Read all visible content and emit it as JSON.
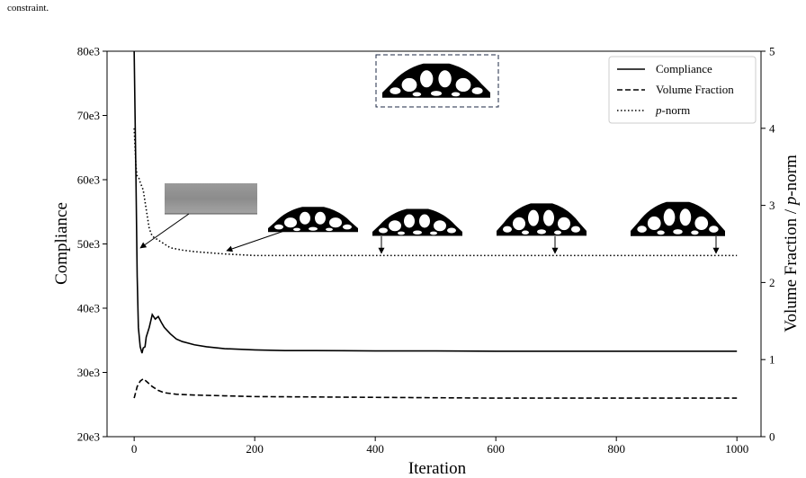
{
  "caption": "constraint.",
  "chart_data": {
    "type": "line",
    "title": "",
    "xlabel": "Iteration",
    "ylabel": "Compliance",
    "y2label": "Volume Fraction / p-norm",
    "y2label_parts": [
      "Volume Fraction / ",
      "p",
      "-norm"
    ],
    "xlim": [
      -45,
      1040
    ],
    "ylim": [
      20000,
      80000
    ],
    "y2lim": [
      0,
      5
    ],
    "xticks": [
      0,
      200,
      400,
      600,
      800,
      1000
    ],
    "yticks": [
      20000,
      30000,
      40000,
      50000,
      60000,
      70000,
      80000
    ],
    "ytick_labels": [
      "20e3",
      "30e3",
      "40e3",
      "50e3",
      "60e3",
      "70e3",
      "80e3"
    ],
    "y2ticks": [
      0,
      1,
      2,
      3,
      4,
      5
    ],
    "legend_position": "top-right",
    "grid": false,
    "series": [
      {
        "name": "Compliance",
        "axis": "left",
        "style": "solid",
        "x": [
          0,
          3,
          5,
          7,
          10,
          13,
          15,
          18,
          20,
          25,
          30,
          35,
          40,
          45,
          50,
          60,
          70,
          80,
          100,
          120,
          150,
          200,
          250,
          300,
          400,
          500,
          600,
          800,
          1000
        ],
        "y": [
          80000,
          60000,
          45000,
          37000,
          34000,
          33000,
          33800,
          34000,
          35500,
          37000,
          39000,
          38300,
          38700,
          37800,
          37000,
          36000,
          35200,
          34800,
          34300,
          34000,
          33700,
          33500,
          33400,
          33400,
          33350,
          33350,
          33300,
          33300,
          33300
        ]
      },
      {
        "name": "Volume Fraction",
        "axis": "right",
        "style": "dashed",
        "x": [
          0,
          5,
          10,
          15,
          20,
          30,
          40,
          50,
          70,
          100,
          150,
          200,
          300,
          400,
          600,
          800,
          1000
        ],
        "y": [
          0.5,
          0.65,
          0.72,
          0.75,
          0.72,
          0.65,
          0.6,
          0.57,
          0.55,
          0.54,
          0.53,
          0.52,
          0.515,
          0.51,
          0.5,
          0.5,
          0.5
        ]
      },
      {
        "name": "p-norm",
        "name_parts": [
          "p",
          "-norm"
        ],
        "axis": "right",
        "style": "dotted",
        "x": [
          0,
          3,
          5,
          8,
          10,
          15,
          20,
          25,
          30,
          40,
          50,
          60,
          80,
          100,
          150,
          200,
          300,
          400,
          600,
          800,
          1000
        ],
        "y": [
          4.0,
          3.5,
          3.38,
          3.35,
          3.3,
          3.2,
          2.95,
          2.7,
          2.6,
          2.55,
          2.5,
          2.45,
          2.42,
          2.4,
          2.37,
          2.35,
          2.35,
          2.35,
          2.35,
          2.35,
          2.35
        ]
      }
    ]
  },
  "inset_images": [
    {
      "name": "inset-initial-gray",
      "style": "gray",
      "arrow_to": [
        8,
        49000
      ]
    },
    {
      "name": "inset-early-design",
      "style": "arch",
      "arrow_to": [
        150,
        50000
      ]
    },
    {
      "name": "inset-design-400",
      "style": "arch",
      "arrow_to": [
        410,
        49000
      ]
    },
    {
      "name": "inset-design-700",
      "style": "arch",
      "arrow_to": [
        700,
        49000
      ]
    },
    {
      "name": "inset-design-925",
      "style": "arch",
      "arrow_to": [
        925,
        49000
      ]
    },
    {
      "name": "inset-final-design",
      "style": "arch-boxed"
    }
  ]
}
